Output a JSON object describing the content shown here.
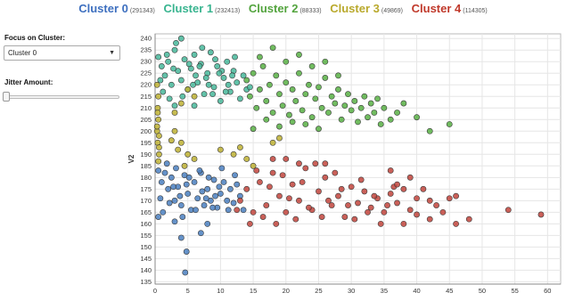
{
  "colors": {
    "cluster0": "#4a7fbf",
    "cluster1": "#47b79a",
    "cluster2": "#58b044",
    "cluster3": "#bdb032",
    "cluster4": "#c1443c"
  },
  "legend": [
    {
      "label": "Cluster 0",
      "count": "(291343)",
      "color": "#3d6fbf"
    },
    {
      "label": "Cluster 1",
      "count": "(232413)",
      "color": "#38b48f"
    },
    {
      "label": "Cluster 2",
      "count": "(88333)",
      "color": "#53a43e"
    },
    {
      "label": "Cluster 3",
      "count": "(49869)",
      "color": "#b9a92c"
    },
    {
      "label": "Cluster 4",
      "count": "(114305)",
      "color": "#c0392b"
    }
  ],
  "controls": {
    "focus_label": "Focus on Cluster:",
    "focus_value": "Cluster 0",
    "jitter_label": "Jitter Amount:",
    "jitter_value": 0
  },
  "icons": {
    "dropdown": "chevron-down-icon"
  },
  "chart_data": {
    "type": "scatter",
    "ylabel": "V2",
    "xlim": [
      0,
      62
    ],
    "ylim": [
      134,
      242
    ],
    "xticks": [
      0,
      5,
      10,
      15,
      20,
      25,
      30,
      35,
      40,
      45,
      50,
      55,
      60
    ],
    "yticks": [
      135,
      140,
      145,
      150,
      155,
      160,
      165,
      170,
      175,
      180,
      185,
      190,
      195,
      200,
      205,
      210,
      215,
      220,
      225,
      230,
      235,
      240
    ],
    "grid": true,
    "series": [
      {
        "name": "Cluster 0",
        "color": "#4a7fbf",
        "points": [
          [
            0.5,
            183
          ],
          [
            1,
            178
          ],
          [
            1.5,
            182
          ],
          [
            2,
            175
          ],
          [
            2.5,
            180
          ],
          [
            3,
            170
          ],
          [
            3.5,
            176
          ],
          [
            4,
            168
          ],
          [
            4.5,
            181
          ],
          [
            5,
            173
          ],
          [
            5.5,
            166
          ],
          [
            6,
            178
          ],
          [
            6.5,
            171
          ],
          [
            7,
            182
          ],
          [
            7.5,
            168
          ],
          [
            8,
            175
          ],
          [
            8.5,
            170
          ],
          [
            9,
            179
          ],
          [
            9.5,
            167
          ],
          [
            10,
            173
          ],
          [
            10.5,
            178
          ],
          [
            11,
            170
          ],
          [
            11.5,
            175
          ],
          [
            12,
            169
          ],
          [
            12.5,
            177
          ],
          [
            13,
            172
          ],
          [
            13.5,
            166
          ],
          [
            1.2,
            165
          ],
          [
            2.2,
            169
          ],
          [
            3.2,
            184
          ],
          [
            4.2,
            163
          ],
          [
            5.2,
            180
          ],
          [
            6.2,
            166
          ],
          [
            7.2,
            174
          ],
          [
            8.2,
            180
          ],
          [
            9.2,
            172
          ],
          [
            10.2,
            184
          ],
          [
            11.2,
            166
          ],
          [
            12.2,
            181
          ],
          [
            0.8,
            171
          ],
          [
            1.8,
            186
          ],
          [
            2.8,
            176
          ],
          [
            3.8,
            172
          ],
          [
            4.8,
            177
          ],
          [
            6.8,
            183
          ],
          [
            7.8,
            171
          ],
          [
            8.8,
            167
          ],
          [
            9.8,
            176
          ],
          [
            4,
            154
          ],
          [
            4.8,
            148
          ],
          [
            4.6,
            139
          ],
          [
            7,
            156
          ],
          [
            8,
            160
          ],
          [
            0.5,
            163
          ],
          [
            3,
            161
          ]
        ]
      },
      {
        "name": "Cluster 1",
        "color": "#47b79a",
        "points": [
          [
            0.5,
            232
          ],
          [
            1,
            228
          ],
          [
            1.5,
            224
          ],
          [
            2,
            230
          ],
          [
            2.5,
            220
          ],
          [
            3,
            235
          ],
          [
            3.5,
            226
          ],
          [
            4,
            222
          ],
          [
            4.5,
            231
          ],
          [
            5,
            218
          ],
          [
            5.5,
            227
          ],
          [
            6,
            233
          ],
          [
            6.5,
            221
          ],
          [
            7,
            229
          ],
          [
            7.5,
            216
          ],
          [
            8,
            225
          ],
          [
            8.5,
            234
          ],
          [
            9,
            219
          ],
          [
            9.5,
            228
          ],
          [
            10,
            213
          ],
          [
            10.5,
            223
          ],
          [
            11,
            230
          ],
          [
            11.5,
            217
          ],
          [
            12,
            226
          ],
          [
            12.5,
            221
          ],
          [
            13,
            214
          ],
          [
            13.5,
            224
          ],
          [
            14,
            218
          ],
          [
            1.2,
            217
          ],
          [
            2.2,
            214
          ],
          [
            3.2,
            238
          ],
          [
            4.2,
            215
          ],
          [
            5.2,
            229
          ],
          [
            6.2,
            224
          ],
          [
            7.2,
            236
          ],
          [
            8.2,
            220
          ],
          [
            9.2,
            231
          ],
          [
            10.2,
            226
          ],
          [
            11.2,
            220
          ],
          [
            12.2,
            232
          ],
          [
            0.8,
            222
          ],
          [
            1.8,
            233
          ],
          [
            2.8,
            227
          ],
          [
            5.8,
            220
          ],
          [
            6.8,
            228
          ],
          [
            7.8,
            223
          ],
          [
            8.8,
            216
          ],
          [
            9.8,
            225
          ],
          [
            10.8,
            217
          ],
          [
            11.8,
            224
          ],
          [
            4,
            240
          ],
          [
            3,
            211
          ],
          [
            6,
            211
          ],
          [
            14.5,
            219
          ]
        ]
      },
      {
        "name": "Cluster 2",
        "color": "#58b044",
        "points": [
          [
            14,
            222
          ],
          [
            14.5,
            215
          ],
          [
            15,
            225
          ],
          [
            15.5,
            210
          ],
          [
            16,
            218
          ],
          [
            16.5,
            228
          ],
          [
            17,
            213
          ],
          [
            17.5,
            220
          ],
          [
            18,
            208
          ],
          [
            18.5,
            224
          ],
          [
            19,
            216
          ],
          [
            19.5,
            211
          ],
          [
            20,
            221
          ],
          [
            20.5,
            207
          ],
          [
            21,
            218
          ],
          [
            21.5,
            213
          ],
          [
            22,
            225
          ],
          [
            22.5,
            209
          ],
          [
            23,
            216
          ],
          [
            23.5,
            220
          ],
          [
            24,
            206
          ],
          [
            24.5,
            214
          ],
          [
            25,
            219
          ],
          [
            25.5,
            210
          ],
          [
            26,
            223
          ],
          [
            26.5,
            208
          ],
          [
            27,
            215
          ],
          [
            27.5,
            212
          ],
          [
            28,
            218
          ],
          [
            28.5,
            205
          ],
          [
            29,
            211
          ],
          [
            29.5,
            216
          ],
          [
            30,
            209
          ],
          [
            30.5,
            213
          ],
          [
            31,
            204
          ],
          [
            31.5,
            210
          ],
          [
            32,
            215
          ],
          [
            32.5,
            206
          ],
          [
            33,
            212
          ],
          [
            33.5,
            208
          ],
          [
            34,
            214
          ],
          [
            34.5,
            203
          ],
          [
            35,
            210
          ],
          [
            36,
            205
          ],
          [
            37,
            208
          ],
          [
            16,
            232
          ],
          [
            18,
            236
          ],
          [
            20,
            230
          ],
          [
            22,
            233
          ],
          [
            24,
            228
          ],
          [
            26,
            230
          ],
          [
            28,
            224
          ],
          [
            19,
            202
          ],
          [
            21,
            204
          ],
          [
            23,
            203
          ],
          [
            25,
            201
          ],
          [
            40,
            206
          ],
          [
            42,
            200
          ],
          [
            45,
            203
          ],
          [
            38,
            212
          ],
          [
            17,
            205
          ],
          [
            15,
            201
          ]
        ]
      },
      {
        "name": "Cluster 3",
        "color": "#bdb032",
        "points": [
          [
            0.3,
            200
          ],
          [
            0.4,
            195
          ],
          [
            0.5,
            205
          ],
          [
            0.6,
            190
          ],
          [
            0.4,
            210
          ],
          [
            0.5,
            215
          ],
          [
            0.3,
            220
          ],
          [
            0.6,
            198
          ],
          [
            0.5,
            187
          ],
          [
            0.4,
            208
          ],
          [
            0.6,
            193
          ],
          [
            0.3,
            202
          ],
          [
            3,
            200
          ],
          [
            4,
            195
          ],
          [
            5,
            190
          ],
          [
            4.5,
            185
          ],
          [
            6,
            188
          ],
          [
            3.5,
            192
          ],
          [
            12,
            190
          ],
          [
            14,
            188
          ],
          [
            18,
            195
          ],
          [
            19,
            197
          ],
          [
            10,
            192
          ],
          [
            15,
            185
          ],
          [
            4,
            212
          ],
          [
            3,
            208
          ],
          [
            6,
            215
          ],
          [
            5,
            218
          ],
          [
            2.5,
            196
          ],
          [
            13,
            193
          ]
        ]
      },
      {
        "name": "Cluster 4",
        "color": "#c1443c",
        "points": [
          [
            13,
            170
          ],
          [
            14,
            175
          ],
          [
            15,
            165
          ],
          [
            16,
            178
          ],
          [
            17,
            168
          ],
          [
            18,
            182
          ],
          [
            19,
            172
          ],
          [
            20,
            165
          ],
          [
            21,
            177
          ],
          [
            22,
            170
          ],
          [
            23,
            184
          ],
          [
            24,
            166
          ],
          [
            25,
            174
          ],
          [
            26,
            180
          ],
          [
            27,
            168
          ],
          [
            28,
            172
          ],
          [
            29,
            163
          ],
          [
            30,
            176
          ],
          [
            31,
            169
          ],
          [
            32,
            174
          ],
          [
            33,
            167
          ],
          [
            34,
            171
          ],
          [
            35,
            165
          ],
          [
            36,
            173
          ],
          [
            37,
            169
          ],
          [
            38,
            175
          ],
          [
            39,
            166
          ],
          [
            40,
            171
          ],
          [
            15.5,
            183
          ],
          [
            16.5,
            163
          ],
          [
            17.5,
            176
          ],
          [
            18.5,
            160
          ],
          [
            19.5,
            181
          ],
          [
            20.5,
            171
          ],
          [
            21.5,
            162
          ],
          [
            22.5,
            178
          ],
          [
            23.5,
            167
          ],
          [
            24.5,
            186
          ],
          [
            25.5,
            163
          ],
          [
            26.5,
            170
          ],
          [
            27.5,
            182
          ],
          [
            28.5,
            175
          ],
          [
            29.5,
            168
          ],
          [
            30.5,
            162
          ],
          [
            31.5,
            179
          ],
          [
            32.5,
            165
          ],
          [
            33.5,
            172
          ],
          [
            34.5,
            160
          ],
          [
            35.5,
            168
          ],
          [
            36.5,
            176
          ],
          [
            14.5,
            160
          ],
          [
            12.5,
            166
          ],
          [
            20,
            188
          ],
          [
            22,
            186
          ],
          [
            26,
            186
          ],
          [
            18,
            188
          ],
          [
            42,
            170
          ],
          [
            43,
            168
          ],
          [
            45,
            171
          ],
          [
            46,
            172
          ],
          [
            48,
            162
          ],
          [
            54,
            166
          ],
          [
            59,
            164
          ],
          [
            42,
            162
          ],
          [
            40,
            164
          ],
          [
            44,
            165
          ],
          [
            38,
            160
          ],
          [
            46,
            160
          ],
          [
            41,
            175
          ],
          [
            37,
            177
          ],
          [
            39,
            180
          ],
          [
            36,
            183
          ]
        ]
      }
    ]
  }
}
